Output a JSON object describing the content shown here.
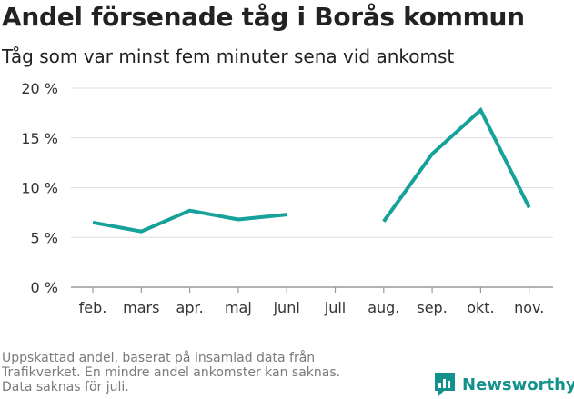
{
  "header": {
    "title": "Andel försenade tåg i Borås kommun",
    "subtitle": "Tåg som var minst fem minuter sena vid ankomst"
  },
  "footnote": {
    "lines": [
      "Uppskattad andel, baserat på insamlad data från",
      "Trafikverket. En mindre andel ankomster kan saknas.",
      "Data saknas för juli."
    ]
  },
  "brand": {
    "name": "Newsworthy",
    "icon": "newsworthy-logo-icon",
    "color": "#13918c"
  },
  "chart_data": {
    "type": "line",
    "title": "Andel försenade tåg i Borås kommun",
    "subtitle": "Tåg som var minst fem minuter sena vid ankomst",
    "categories": [
      "feb.",
      "mars",
      "apr.",
      "maj",
      "juni",
      "juli",
      "aug.",
      "sep.",
      "okt.",
      "nov."
    ],
    "series": [
      {
        "values": [
          6.5,
          5.6,
          7.7,
          6.8,
          7.3,
          null,
          6.6,
          13.4,
          17.8,
          8.0
        ],
        "color": "#16a19a"
      }
    ],
    "y_ticks": [
      0,
      5,
      10,
      15,
      20
    ],
    "y_tick_labels": [
      "0 %",
      "5 %",
      "10 %",
      "15 %",
      "20 %"
    ],
    "ylim": [
      0,
      20
    ],
    "xlabel": "",
    "ylabel": "",
    "grid": true,
    "legend": "none"
  }
}
